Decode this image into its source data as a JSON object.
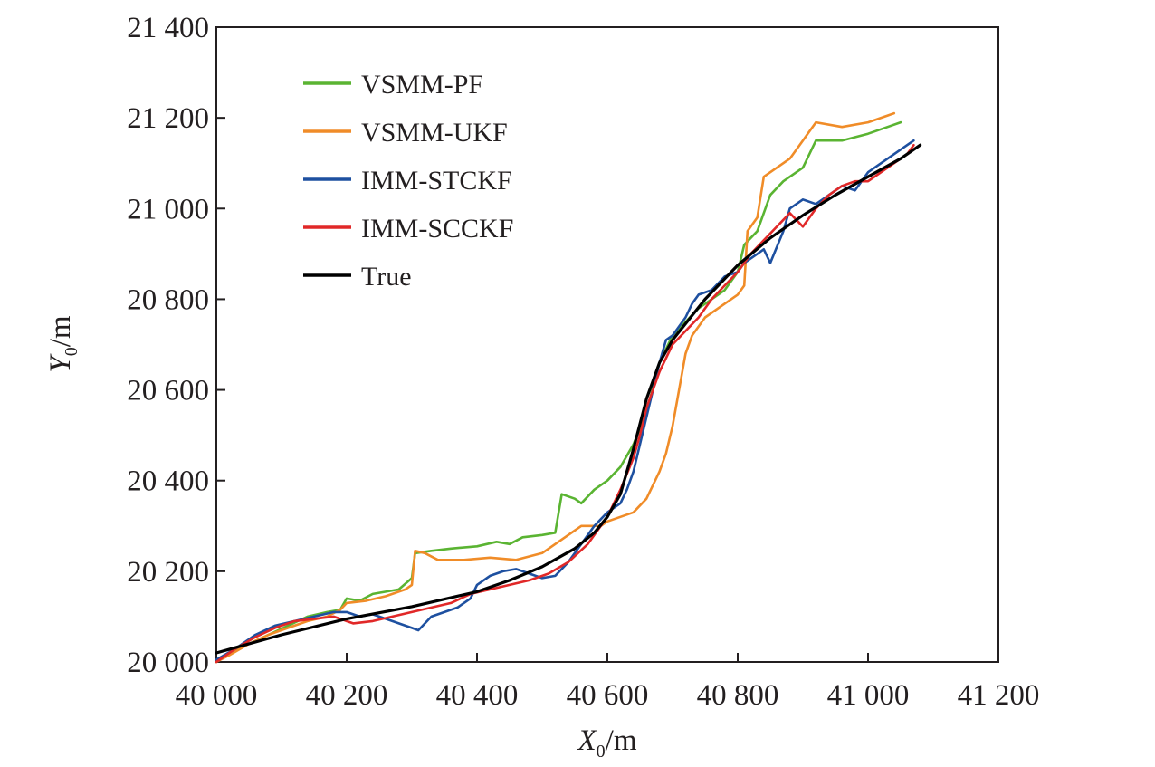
{
  "chart_data": {
    "type": "line",
    "xlabel": {
      "main": "X",
      "sub": "0",
      "unit": "/m"
    },
    "ylabel": {
      "main": "Y",
      "sub": "0",
      "unit": "/m"
    },
    "xlim": [
      40000,
      41200
    ],
    "ylim": [
      20000,
      21400
    ],
    "x_ticks": [
      40000,
      40200,
      40400,
      40600,
      40800,
      41000,
      41200
    ],
    "x_tick_labels": [
      "40 000",
      "40 200",
      "40 400",
      "40 600",
      "40 800",
      "41 000",
      "41 200"
    ],
    "y_ticks": [
      20000,
      20200,
      20400,
      20600,
      20800,
      21000,
      21200,
      21400
    ],
    "y_tick_labels": [
      "20 000",
      "20 200",
      "20 400",
      "20 600",
      "20 800",
      "21 000",
      "21 200",
      "21 400"
    ],
    "grid": false,
    "legend_position": "top-left",
    "series": [
      {
        "name": "VSMM-PF",
        "color": "#5ab432",
        "points": [
          [
            40000,
            20000
          ],
          [
            40020,
            20020
          ],
          [
            40050,
            20040
          ],
          [
            40080,
            20060
          ],
          [
            40110,
            20080
          ],
          [
            40140,
            20100
          ],
          [
            40170,
            20110
          ],
          [
            40190,
            20115
          ],
          [
            40200,
            20140
          ],
          [
            40220,
            20135
          ],
          [
            40240,
            20150
          ],
          [
            40260,
            20155
          ],
          [
            40280,
            20160
          ],
          [
            40300,
            20185
          ],
          [
            40305,
            20240
          ],
          [
            40330,
            20245
          ],
          [
            40360,
            20250
          ],
          [
            40400,
            20255
          ],
          [
            40430,
            20265
          ],
          [
            40450,
            20260
          ],
          [
            40470,
            20275
          ],
          [
            40500,
            20280
          ],
          [
            40520,
            20285
          ],
          [
            40530,
            20370
          ],
          [
            40550,
            20360
          ],
          [
            40560,
            20350
          ],
          [
            40580,
            20380
          ],
          [
            40600,
            20400
          ],
          [
            40620,
            20430
          ],
          [
            40640,
            20480
          ],
          [
            40660,
            20550
          ],
          [
            40680,
            20660
          ],
          [
            40700,
            20720
          ],
          [
            40720,
            20750
          ],
          [
            40740,
            20780
          ],
          [
            40760,
            20800
          ],
          [
            40780,
            20820
          ],
          [
            40800,
            20860
          ],
          [
            40810,
            20920
          ],
          [
            40830,
            20950
          ],
          [
            40850,
            21030
          ],
          [
            40870,
            21060
          ],
          [
            40900,
            21090
          ],
          [
            40920,
            21150
          ],
          [
            40960,
            21150
          ],
          [
            41000,
            21165
          ],
          [
            41030,
            21180
          ],
          [
            41050,
            21190
          ]
        ]
      },
      {
        "name": "VSMM-UKF",
        "color": "#f08c28",
        "points": [
          [
            40000,
            20000
          ],
          [
            40020,
            20015
          ],
          [
            40050,
            20040
          ],
          [
            40080,
            20060
          ],
          [
            40110,
            20075
          ],
          [
            40140,
            20090
          ],
          [
            40170,
            20100
          ],
          [
            40190,
            20115
          ],
          [
            40200,
            20130
          ],
          [
            40230,
            20135
          ],
          [
            40260,
            20145
          ],
          [
            40290,
            20160
          ],
          [
            40300,
            20170
          ],
          [
            40305,
            20245
          ],
          [
            40320,
            20240
          ],
          [
            40340,
            20225
          ],
          [
            40380,
            20225
          ],
          [
            40420,
            20230
          ],
          [
            40460,
            20225
          ],
          [
            40500,
            20240
          ],
          [
            40530,
            20270
          ],
          [
            40560,
            20300
          ],
          [
            40590,
            20300
          ],
          [
            40600,
            20310
          ],
          [
            40620,
            20320
          ],
          [
            40640,
            20330
          ],
          [
            40660,
            20360
          ],
          [
            40680,
            20420
          ],
          [
            40690,
            20460
          ],
          [
            40700,
            20520
          ],
          [
            40710,
            20600
          ],
          [
            40720,
            20680
          ],
          [
            40730,
            20720
          ],
          [
            40750,
            20760
          ],
          [
            40770,
            20780
          ],
          [
            40790,
            20800
          ],
          [
            40800,
            20810
          ],
          [
            40810,
            20830
          ],
          [
            40815,
            20950
          ],
          [
            40830,
            20980
          ],
          [
            40840,
            21070
          ],
          [
            40860,
            21090
          ],
          [
            40880,
            21110
          ],
          [
            40900,
            21150
          ],
          [
            40920,
            21190
          ],
          [
            40960,
            21180
          ],
          [
            41000,
            21190
          ],
          [
            41030,
            21205
          ],
          [
            41040,
            21210
          ]
        ]
      },
      {
        "name": "IMM-STCKF",
        "color": "#1e50a0",
        "points": [
          [
            40000,
            20005
          ],
          [
            40030,
            20030
          ],
          [
            40060,
            20060
          ],
          [
            40090,
            20080
          ],
          [
            40120,
            20090
          ],
          [
            40150,
            20100
          ],
          [
            40180,
            20110
          ],
          [
            40200,
            20110
          ],
          [
            40220,
            20100
          ],
          [
            40240,
            20105
          ],
          [
            40260,
            20095
          ],
          [
            40280,
            20085
          ],
          [
            40300,
            20075
          ],
          [
            40310,
            20070
          ],
          [
            40330,
            20100
          ],
          [
            40350,
            20110
          ],
          [
            40370,
            20120
          ],
          [
            40390,
            20140
          ],
          [
            40400,
            20170
          ],
          [
            40420,
            20190
          ],
          [
            40440,
            20200
          ],
          [
            40460,
            20205
          ],
          [
            40480,
            20195
          ],
          [
            40500,
            20185
          ],
          [
            40520,
            20190
          ],
          [
            40540,
            20220
          ],
          [
            40560,
            20260
          ],
          [
            40580,
            20300
          ],
          [
            40600,
            20330
          ],
          [
            40610,
            20340
          ],
          [
            40620,
            20350
          ],
          [
            40630,
            20380
          ],
          [
            40640,
            20420
          ],
          [
            40650,
            20480
          ],
          [
            40660,
            20540
          ],
          [
            40670,
            20600
          ],
          [
            40680,
            20660
          ],
          [
            40690,
            20710
          ],
          [
            40700,
            20720
          ],
          [
            40710,
            20740
          ],
          [
            40720,
            20760
          ],
          [
            40730,
            20790
          ],
          [
            40740,
            20810
          ],
          [
            40760,
            20820
          ],
          [
            40780,
            20850
          ],
          [
            40800,
            20860
          ],
          [
            40810,
            20880
          ],
          [
            40830,
            20900
          ],
          [
            40840,
            20910
          ],
          [
            40850,
            20880
          ],
          [
            40870,
            20950
          ],
          [
            40880,
            21000
          ],
          [
            40900,
            21020
          ],
          [
            40920,
            21010
          ],
          [
            40940,
            21030
          ],
          [
            40960,
            21050
          ],
          [
            40980,
            21040
          ],
          [
            41000,
            21080
          ],
          [
            41020,
            21100
          ],
          [
            41040,
            21120
          ],
          [
            41060,
            21140
          ],
          [
            41070,
            21150
          ]
        ]
      },
      {
        "name": "IMM-SCCKF",
        "color": "#e12828",
        "points": [
          [
            40000,
            20000
          ],
          [
            40030,
            20030
          ],
          [
            40060,
            20055
          ],
          [
            40090,
            20075
          ],
          [
            40120,
            20090
          ],
          [
            40150,
            20095
          ],
          [
            40180,
            20100
          ],
          [
            40210,
            20085
          ],
          [
            40240,
            20090
          ],
          [
            40270,
            20100
          ],
          [
            40300,
            20110
          ],
          [
            40330,
            20120
          ],
          [
            40360,
            20130
          ],
          [
            40390,
            20150
          ],
          [
            40420,
            20160
          ],
          [
            40450,
            20170
          ],
          [
            40480,
            20180
          ],
          [
            40510,
            20195
          ],
          [
            40540,
            20220
          ],
          [
            40570,
            20260
          ],
          [
            40600,
            20320
          ],
          [
            40620,
            20380
          ],
          [
            40640,
            20450
          ],
          [
            40650,
            20500
          ],
          [
            40660,
            20560
          ],
          [
            40680,
            20640
          ],
          [
            40700,
            20700
          ],
          [
            40720,
            20730
          ],
          [
            40740,
            20760
          ],
          [
            40760,
            20800
          ],
          [
            40780,
            20830
          ],
          [
            40800,
            20860
          ],
          [
            40820,
            20900
          ],
          [
            40840,
            20930
          ],
          [
            40860,
            20960
          ],
          [
            40880,
            20990
          ],
          [
            40900,
            20960
          ],
          [
            40920,
            21000
          ],
          [
            40940,
            21030
          ],
          [
            40960,
            21050
          ],
          [
            40980,
            21060
          ],
          [
            41000,
            21060
          ],
          [
            41020,
            21080
          ],
          [
            41040,
            21100
          ],
          [
            41060,
            21120
          ],
          [
            41070,
            21140
          ]
        ]
      },
      {
        "name": "True",
        "color": "#000000",
        "points": [
          [
            40000,
            20020
          ],
          [
            40100,
            20060
          ],
          [
            40200,
            20095
          ],
          [
            40300,
            20122
          ],
          [
            40400,
            20155
          ],
          [
            40450,
            20180
          ],
          [
            40500,
            20210
          ],
          [
            40550,
            20250
          ],
          [
            40580,
            20285
          ],
          [
            40600,
            20320
          ],
          [
            40620,
            20370
          ],
          [
            40640,
            20470
          ],
          [
            40660,
            20580
          ],
          [
            40680,
            20660
          ],
          [
            40700,
            20710
          ],
          [
            40750,
            20800
          ],
          [
            40800,
            20875
          ],
          [
            40850,
            20935
          ],
          [
            40900,
            20985
          ],
          [
            40950,
            21030
          ],
          [
            41000,
            21070
          ],
          [
            41050,
            21110
          ],
          [
            41080,
            21140
          ]
        ]
      }
    ]
  }
}
